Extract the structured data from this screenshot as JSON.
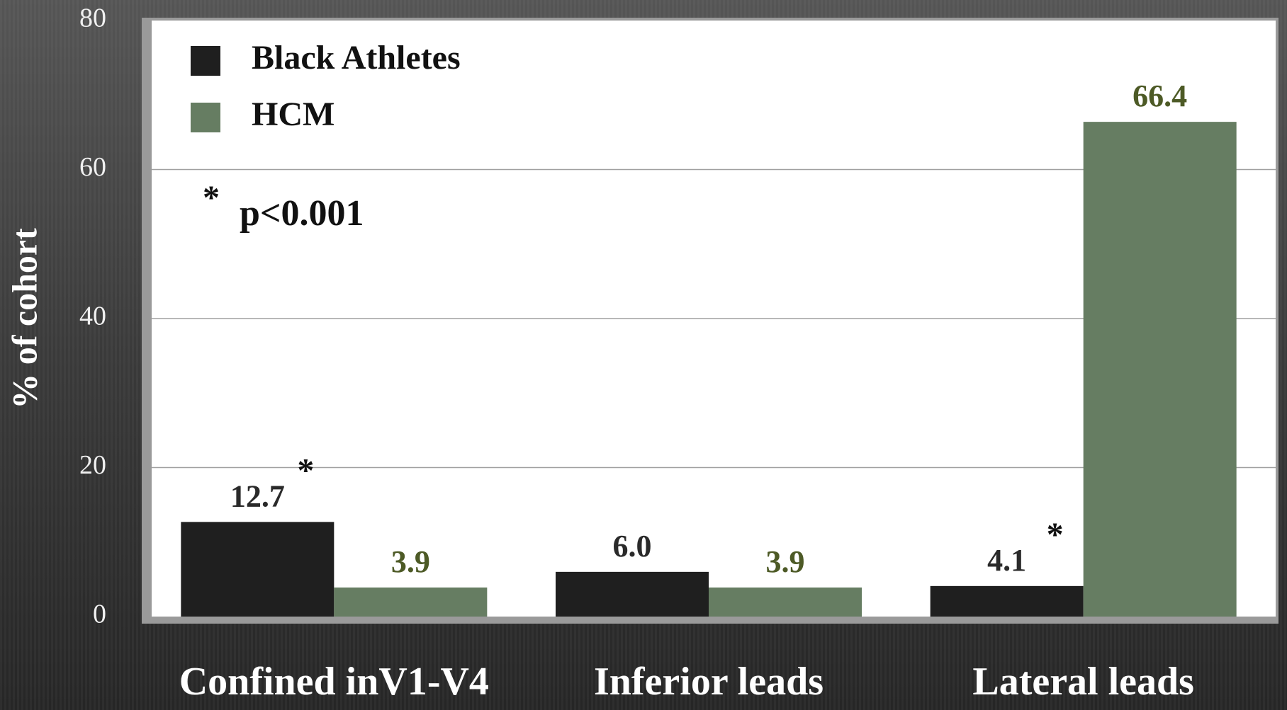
{
  "chart_data": {
    "type": "bar",
    "categories": [
      "Confined inV1-V4",
      "Inferior leads",
      "Lateral leads"
    ],
    "series": [
      {
        "name": "Black Athletes",
        "color": "#1f1f1f",
        "label_color": "#2a2a2a",
        "values": [
          12.7,
          6.0,
          4.1
        ],
        "value_labels": [
          "12.7",
          "6.0",
          "4.1"
        ]
      },
      {
        "name": "HCM",
        "color": "#667d62",
        "label_color": "#4d5a26",
        "values": [
          3.9,
          3.9,
          66.4
        ],
        "value_labels": [
          "3.9",
          "3.9",
          "66.4"
        ]
      }
    ],
    "y_label": "% of cohort",
    "ylim": [
      0,
      80
    ],
    "yticks": [
      0,
      20,
      40,
      60,
      80
    ],
    "grid": true,
    "legend": "top-left",
    "significance_marker": "*",
    "p_value_note": "p<0.001"
  }
}
